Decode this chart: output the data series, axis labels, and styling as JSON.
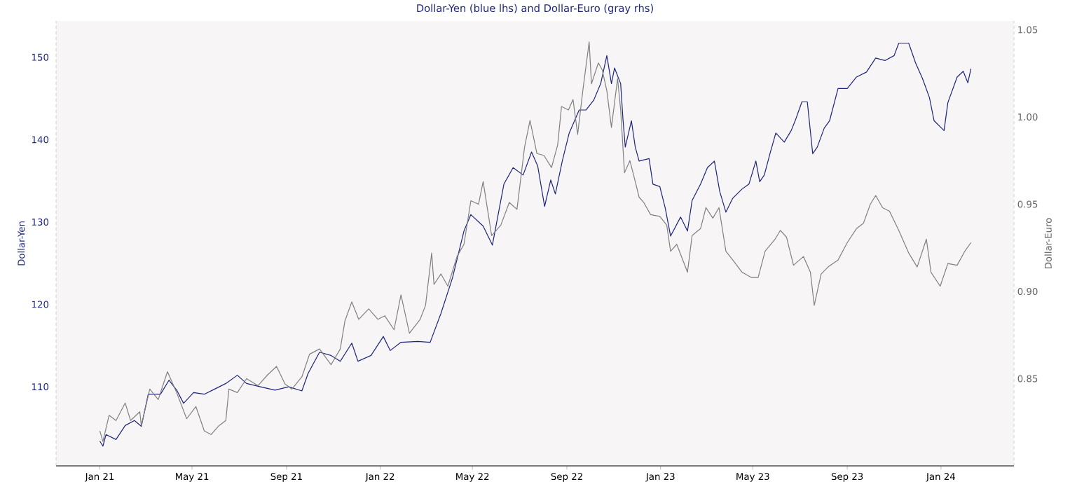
{
  "chart_data": {
    "type": "line",
    "title": "Dollar-Yen (blue lhs) and Dollar-Euro (gray rhs)",
    "ylabel": "Dollar-Yen",
    "y2label": "Dollar-Euro",
    "xlim": [
      "2020-11-05",
      "2024-04-05"
    ],
    "xticks": [
      {
        "value": "2021-01-01",
        "label": "Jan 21"
      },
      {
        "value": "2021-05-01",
        "label": "May 21"
      },
      {
        "value": "2021-09-01",
        "label": "Sep 21"
      },
      {
        "value": "2022-01-01",
        "label": "Jan 22"
      },
      {
        "value": "2022-05-01",
        "label": "May 22"
      },
      {
        "value": "2022-09-01",
        "label": "Sep 22"
      },
      {
        "value": "2023-01-01",
        "label": "Jan 23"
      },
      {
        "value": "2023-05-01",
        "label": "May 23"
      },
      {
        "value": "2023-09-01",
        "label": "Sep 23"
      },
      {
        "value": "2024-01-01",
        "label": "Jan 24"
      }
    ],
    "ylim": [
      100.4,
      154.4
    ],
    "yticks": [
      110,
      120,
      130,
      140,
      150
    ],
    "y2lim": [
      0.8,
      1.055
    ],
    "y2ticks": [
      {
        "value": 0.85,
        "label": "0.85"
      },
      {
        "value": 0.9,
        "label": "0.90"
      },
      {
        "value": 0.95,
        "label": "0.95"
      },
      {
        "value": 1.0,
        "label": "1.00"
      },
      {
        "value": 1.05,
        "label": "1.05"
      }
    ],
    "series": [
      {
        "color": "#1b237e",
        "x": [
          "2021-01-01",
          "2021-01-05",
          "2021-01-09",
          "2021-01-22",
          "2021-02-03",
          "2021-02-15",
          "2021-02-24",
          "2021-03-05",
          "2021-03-21",
          "2021-04-01",
          "2021-04-11",
          "2021-04-20",
          "2021-05-03",
          "2021-05-17",
          "2021-05-30",
          "2021-06-14",
          "2021-06-29",
          "2021-07-11",
          "2021-07-29",
          "2021-08-17",
          "2021-09-04",
          "2021-09-21",
          "2021-09-29",
          "2021-10-14",
          "2021-10-29",
          "2021-11-10",
          "2021-11-25",
          "2021-12-03",
          "2021-12-20",
          "2022-01-05",
          "2022-01-14",
          "2022-01-28",
          "2022-02-19",
          "2022-03-07",
          "2022-03-21",
          "2022-04-05",
          "2022-04-20",
          "2022-04-29",
          "2022-05-15",
          "2022-05-27",
          "2022-06-11",
          "2022-06-23",
          "2022-07-06",
          "2022-07-17",
          "2022-07-25",
          "2022-08-03",
          "2022-08-11",
          "2022-08-17",
          "2022-08-26",
          "2022-09-04",
          "2022-09-17",
          "2022-09-26",
          "2022-10-06",
          "2022-10-15",
          "2022-10-23",
          "2022-10-29",
          "2022-11-02",
          "2022-11-10",
          "2022-11-13",
          "2022-11-16",
          "2022-11-24",
          "2022-11-29",
          "2022-12-04",
          "2022-12-17",
          "2022-12-22",
          "2022-12-31",
          "2023-01-07",
          "2023-01-14",
          "2023-01-27",
          "2023-02-05",
          "2023-02-11",
          "2023-02-22",
          "2023-03-03",
          "2023-03-12",
          "2023-03-19",
          "2023-03-27",
          "2023-04-05",
          "2023-04-17",
          "2023-04-26",
          "2023-05-05",
          "2023-05-10",
          "2023-05-16",
          "2023-05-24",
          "2023-05-31",
          "2023-06-11",
          "2023-06-20",
          "2023-06-26",
          "2023-07-04",
          "2023-07-11",
          "2023-07-18",
          "2023-07-24",
          "2023-08-02",
          "2023-08-09",
          "2023-08-20",
          "2023-09-01",
          "2023-09-13",
          "2023-09-26",
          "2023-10-08",
          "2023-10-20",
          "2023-11-01",
          "2023-11-07",
          "2023-11-20",
          "2023-11-29",
          "2023-12-08",
          "2023-12-17",
          "2023-12-23",
          "2024-01-05",
          "2024-01-10",
          "2024-01-22",
          "2024-01-30",
          "2024-02-05",
          "2024-02-09"
        ],
        "values": [
          103.4,
          102.8,
          104.2,
          103.6,
          105.3,
          105.9,
          105.2,
          109.1,
          109.1,
          110.8,
          109.6,
          108.0,
          109.3,
          109.1,
          109.7,
          110.4,
          111.4,
          110.4,
          110.0,
          109.6,
          110.0,
          109.5,
          111.6,
          114.2,
          113.8,
          113.1,
          115.3,
          113.1,
          113.8,
          116.1,
          114.4,
          115.4,
          115.5,
          115.4,
          118.9,
          123.2,
          128.9,
          130.9,
          129.5,
          127.2,
          134.6,
          136.6,
          135.7,
          138.5,
          136.8,
          131.9,
          135.1,
          133.4,
          137.4,
          140.8,
          143.6,
          143.6,
          144.8,
          146.8,
          150.2,
          146.8,
          148.7,
          146.8,
          142.5,
          139.1,
          142.3,
          139.1,
          137.4,
          137.7,
          134.6,
          134.3,
          131.7,
          128.3,
          130.6,
          128.9,
          132.6,
          134.6,
          136.6,
          137.4,
          133.7,
          131.2,
          132.9,
          134.0,
          134.6,
          137.4,
          134.9,
          135.7,
          138.5,
          140.8,
          139.7,
          141.1,
          142.5,
          144.6,
          144.6,
          138.3,
          139.1,
          141.4,
          142.3,
          146.2,
          146.2,
          147.6,
          148.2,
          149.9,
          149.6,
          150.2,
          151.7,
          151.7,
          149.3,
          147.4,
          145.1,
          142.3,
          141.1,
          144.5,
          147.6,
          148.3,
          146.9,
          148.6
        ]
      },
      {
        "axis": "y2",
        "color": "#808080",
        "x": [
          "2021-01-01",
          "2021-01-05",
          "2021-01-13",
          "2021-01-22",
          "2021-02-03",
          "2021-02-10",
          "2021-02-22",
          "2021-02-24",
          "2021-03-07",
          "2021-03-18",
          "2021-03-30",
          "2021-04-11",
          "2021-04-24",
          "2021-05-06",
          "2021-05-17",
          "2021-05-26",
          "2021-06-05",
          "2021-06-14",
          "2021-06-18",
          "2021-06-29",
          "2021-07-11",
          "2021-07-26",
          "2021-08-07",
          "2021-08-19",
          "2021-08-30",
          "2021-09-08",
          "2021-09-21",
          "2021-10-01",
          "2021-10-14",
          "2021-10-29",
          "2021-11-10",
          "2021-11-16",
          "2021-11-25",
          "2021-12-04",
          "2021-12-17",
          "2021-12-29",
          "2022-01-07",
          "2022-01-19",
          "2022-01-28",
          "2022-02-08",
          "2022-02-22",
          "2022-03-01",
          "2022-03-09",
          "2022-03-12",
          "2022-03-21",
          "2022-03-30",
          "2022-04-11",
          "2022-04-20",
          "2022-04-29",
          "2022-05-09",
          "2022-05-15",
          "2022-05-26",
          "2022-06-07",
          "2022-06-18",
          "2022-06-28",
          "2022-07-08",
          "2022-07-15",
          "2022-07-24",
          "2022-08-02",
          "2022-08-12",
          "2022-08-20",
          "2022-08-25",
          "2022-09-03",
          "2022-09-09",
          "2022-09-15",
          "2022-09-22",
          "2022-09-30",
          "2022-10-03",
          "2022-10-12",
          "2022-10-17",
          "2022-10-23",
          "2022-10-29",
          "2022-11-06",
          "2022-11-10",
          "2022-11-15",
          "2022-11-22",
          "2022-11-29",
          "2022-12-04",
          "2022-12-10",
          "2022-12-19",
          "2022-12-31",
          "2023-01-09",
          "2023-01-14",
          "2023-01-22",
          "2023-02-05",
          "2023-02-11",
          "2023-02-22",
          "2023-03-01",
          "2023-03-10",
          "2023-03-18",
          "2023-03-27",
          "2023-04-05",
          "2023-04-17",
          "2023-04-29",
          "2023-05-08",
          "2023-05-17",
          "2023-05-30",
          "2023-06-06",
          "2023-06-14",
          "2023-06-23",
          "2023-07-06",
          "2023-07-15",
          "2023-07-20",
          "2023-07-29",
          "2023-08-07",
          "2023-08-20",
          "2023-09-01",
          "2023-09-13",
          "2023-09-22",
          "2023-10-01",
          "2023-10-08",
          "2023-10-17",
          "2023-10-26",
          "2023-11-07",
          "2023-11-20",
          "2023-12-01",
          "2023-12-13",
          "2023-12-19",
          "2023-12-31",
          "2024-01-10",
          "2024-01-22",
          "2024-02-01",
          "2024-02-09"
        ],
        "values": [
          0.82,
          0.814,
          0.829,
          0.826,
          0.836,
          0.826,
          0.831,
          0.823,
          0.844,
          0.838,
          0.854,
          0.842,
          0.827,
          0.834,
          0.82,
          0.818,
          0.823,
          0.826,
          0.844,
          0.842,
          0.85,
          0.846,
          0.852,
          0.857,
          0.847,
          0.844,
          0.851,
          0.864,
          0.867,
          0.858,
          0.867,
          0.883,
          0.894,
          0.884,
          0.89,
          0.884,
          0.886,
          0.878,
          0.898,
          0.876,
          0.884,
          0.892,
          0.922,
          0.904,
          0.91,
          0.903,
          0.92,
          0.927,
          0.952,
          0.95,
          0.963,
          0.932,
          0.938,
          0.951,
          0.947,
          0.983,
          0.998,
          0.979,
          0.978,
          0.971,
          0.984,
          1.006,
          1.004,
          1.01,
          0.99,
          1.016,
          1.043,
          1.019,
          1.031,
          1.027,
          1.015,
          0.994,
          1.022,
          1.004,
          0.968,
          0.975,
          0.963,
          0.954,
          0.951,
          0.944,
          0.943,
          0.938,
          0.923,
          0.927,
          0.911,
          0.932,
          0.936,
          0.948,
          0.942,
          0.948,
          0.923,
          0.918,
          0.911,
          0.908,
          0.908,
          0.923,
          0.93,
          0.935,
          0.931,
          0.915,
          0.92,
          0.911,
          0.892,
          0.91,
          0.914,
          0.918,
          0.928,
          0.936,
          0.939,
          0.95,
          0.955,
          0.948,
          0.946,
          0.935,
          0.922,
          0.914,
          0.93,
          0.911,
          0.903,
          0.916,
          0.915,
          0.923,
          0.928
        ]
      }
    ]
  }
}
